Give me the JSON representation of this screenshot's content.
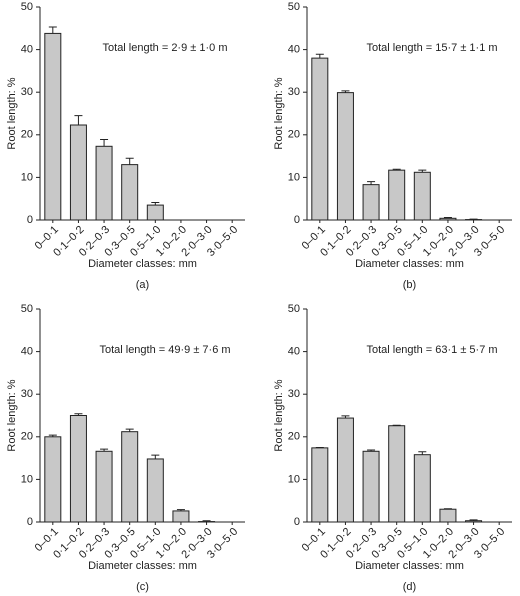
{
  "chart_data": [
    {
      "type": "bar",
      "annotation": "Total length = 2·9 ± 1·0 m",
      "label": "(a)",
      "ylabel": "Root length: %",
      "xlabel": "Diameter classes: mm",
      "categories": [
        "0–0·1",
        "0·1–0·2",
        "0·2–0·3",
        "0·3–0·5",
        "0·5–1·0",
        "1·0–2·0",
        "2·0–3·0",
        "3·0–5·0"
      ],
      "values": [
        43.8,
        22.3,
        17.3,
        13.0,
        3.5,
        0,
        0,
        0
      ],
      "errors": [
        1.5,
        2.2,
        1.6,
        1.5,
        0.6,
        0,
        0,
        0
      ],
      "color": "#c8c8c8",
      "ylim": [
        0,
        50
      ],
      "yticks": [
        0,
        10,
        20,
        30,
        40,
        50
      ]
    },
    {
      "type": "bar",
      "annotation": "Total length = 15·7 ± 1·1 m",
      "label": "(b)",
      "ylabel": "Root length: %",
      "xlabel": "Diameter classes: mm",
      "categories": [
        "0–0·1",
        "0·1–0·2",
        "0·2–0·3",
        "0·3–0·5",
        "0·5–1·0",
        "1·0–2·0",
        "2·0–3·0",
        "3·0–5·0"
      ],
      "values": [
        38.0,
        29.9,
        8.3,
        11.7,
        11.2,
        0.4,
        0.1,
        0
      ],
      "errors": [
        0.9,
        0.4,
        0.7,
        0.2,
        0.5,
        0.2,
        0.1,
        0
      ],
      "color": "#c8c8c8",
      "ylim": [
        0,
        50
      ],
      "yticks": [
        0,
        10,
        20,
        30,
        40,
        50
      ]
    },
    {
      "type": "bar",
      "annotation": "Total length = 49·9 ± 7·6 m",
      "label": "(c)",
      "ylabel": "Root length: %",
      "xlabel": "Diameter classes: mm",
      "categories": [
        "0–0·1",
        "0·1–0·2",
        "0·2–0·3",
        "0·3–0·5",
        "0·5–1·0",
        "1·0–2·0",
        "2·0–3·0",
        "3·0–5·0"
      ],
      "values": [
        20.0,
        25.0,
        16.6,
        21.2,
        14.8,
        2.6,
        0.1,
        0
      ],
      "errors": [
        0.4,
        0.4,
        0.5,
        0.6,
        0.9,
        0.3,
        0.2,
        0
      ],
      "color": "#c8c8c8",
      "ylim": [
        0,
        50
      ],
      "yticks": [
        0,
        10,
        20,
        30,
        40,
        50
      ]
    },
    {
      "type": "bar",
      "annotation": "Total length = 63·1 ± 5·7 m",
      "label": "(d)",
      "ylabel": "Root length: %",
      "xlabel": "Diameter classes: mm",
      "categories": [
        "0–0·1",
        "0·1–0·2",
        "0·2–0·3",
        "0·3–0·5",
        "0·5–1·0",
        "1·0–2·0",
        "2·0–3·0",
        "3·0–5·0"
      ],
      "values": [
        17.4,
        24.4,
        16.6,
        22.6,
        15.8,
        3.0,
        0.3,
        0
      ],
      "errors": [
        0.1,
        0.5,
        0.3,
        0.1,
        0.7,
        0.1,
        0.2,
        0
      ],
      "color": "#c8c8c8",
      "ylim": [
        0,
        50
      ],
      "yticks": [
        0,
        10,
        20,
        30,
        40,
        50
      ]
    }
  ]
}
